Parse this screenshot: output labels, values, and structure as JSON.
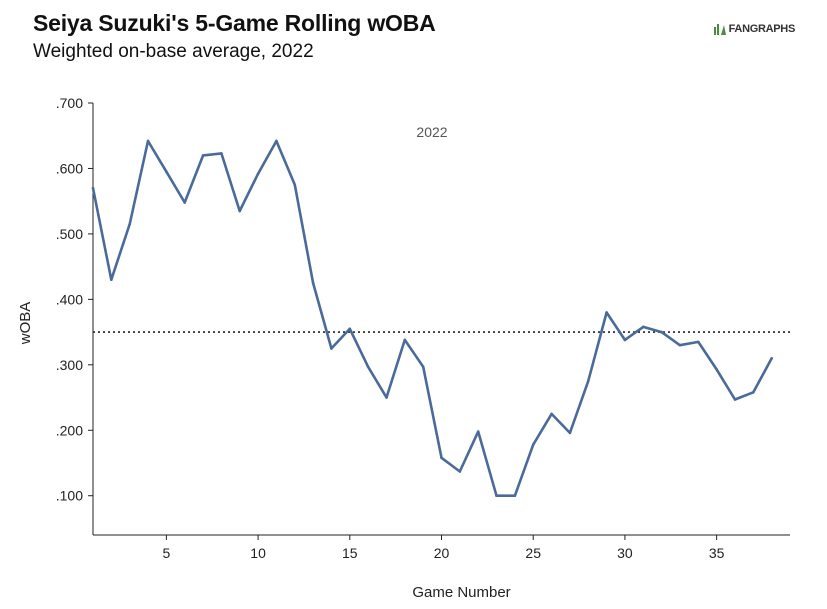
{
  "header": {
    "title": "Seiya Suzuki's 5-Game Rolling wOBA",
    "subtitle": "Weighted on-base average, 2022",
    "logo_text": "FANGRAPHS",
    "logo_icon": "fangraphs-tree-icon",
    "logo_color": "#4a8c3a"
  },
  "chart_data": {
    "type": "line",
    "title": "Seiya Suzuki's 5-Game Rolling wOBA",
    "subtitle": "Weighted on-base average, 2022",
    "xlabel": "Game Number",
    "ylabel": "wOBA",
    "xlim": [
      1,
      39
    ],
    "ylim": [
      0.04,
      0.7
    ],
    "x_ticks": [
      5,
      10,
      15,
      20,
      25,
      30,
      35
    ],
    "y_ticks": [
      0.1,
      0.2,
      0.3,
      0.4,
      0.5,
      0.6,
      0.7
    ],
    "y_tick_labels": [
      ".100",
      ".200",
      ".300",
      ".400",
      ".500",
      ".600",
      ".700"
    ],
    "reference_line": {
      "y": 0.35,
      "style": "dotted"
    },
    "annotation": "2022",
    "line_color": "#4a6a9a",
    "series": [
      {
        "x": [
          1,
          2,
          3,
          4,
          5,
          6,
          7,
          8,
          9,
          10,
          11,
          12,
          13,
          14,
          15,
          16,
          17,
          18,
          19,
          20,
          21,
          22,
          23,
          24,
          25,
          26,
          27,
          28,
          29,
          30,
          31,
          32,
          33,
          34,
          35,
          36,
          37,
          38
        ],
        "values": [
          0.57,
          0.43,
          0.515,
          0.642,
          0.595,
          0.548,
          0.62,
          0.623,
          0.535,
          0.592,
          0.642,
          0.575,
          0.425,
          0.325,
          0.355,
          0.297,
          0.25,
          0.338,
          0.297,
          0.158,
          0.137,
          0.198,
          0.1,
          0.1,
          0.178,
          0.225,
          0.196,
          0.275,
          0.38,
          0.338,
          0.358,
          0.35,
          0.33,
          0.335,
          0.293,
          0.247,
          0.258,
          0.31
        ]
      }
    ]
  }
}
